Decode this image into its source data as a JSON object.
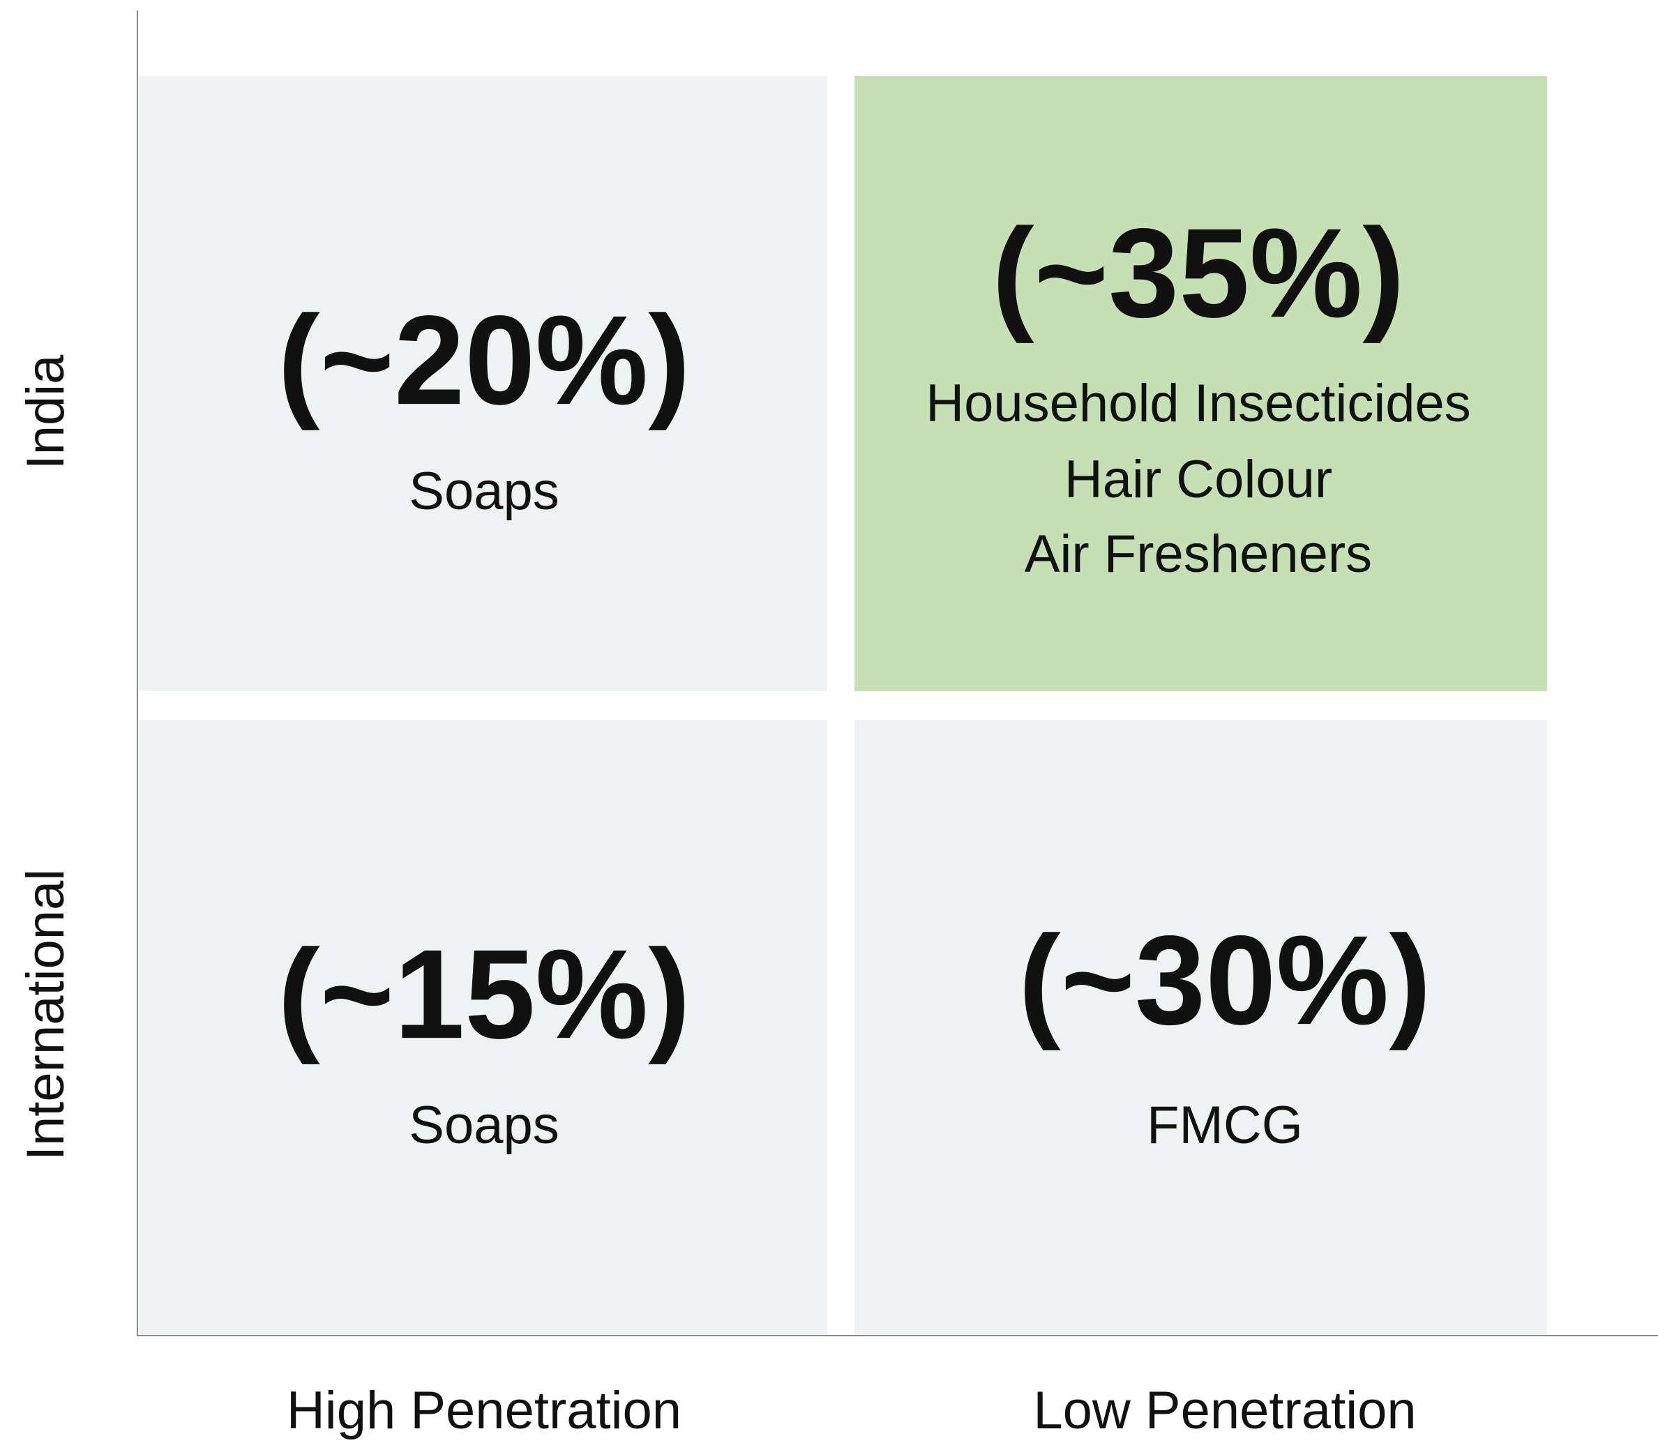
{
  "rows": [
    "India",
    "International"
  ],
  "columns": [
    "High Penetration",
    "Low Penetration"
  ],
  "cells": [
    {
      "share": "(~20%)",
      "items": [
        "Soaps"
      ]
    },
    {
      "share": "(~35%)",
      "items": [
        "Household Insecticides",
        "Hair Colour",
        "Air Fresheners"
      ]
    },
    {
      "share": "(~15%)",
      "items": [
        "Soaps"
      ]
    },
    {
      "share": "(~30%)",
      "items": [
        "FMCG"
      ]
    }
  ]
}
